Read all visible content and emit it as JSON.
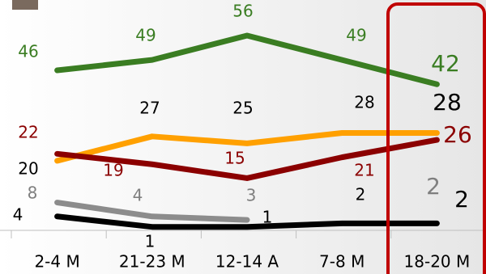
{
  "chart_data": {
    "type": "line",
    "categories": [
      "2-4 M",
      "21-23 M",
      "12-14 A",
      "7-8 M",
      "18-20 M"
    ],
    "series": [
      {
        "color": "#3a7d22",
        "label_color": "#3a7d22",
        "values": [
          46,
          49,
          56,
          49,
          42
        ]
      },
      {
        "color": "#ffa000",
        "label_color": "#000000",
        "values": [
          20,
          27,
          25,
          28,
          28
        ]
      },
      {
        "color": "#8b0000",
        "label_color": "#8b0000",
        "values": [
          22,
          19,
          15,
          21,
          26
        ]
      },
      {
        "color": "#8c8c8c",
        "label_color": "#7f7f7f",
        "values": [
          8,
          4,
          3,
          null,
          2
        ]
      },
      {
        "color": "#000000",
        "label_color": "#000000",
        "values": [
          4,
          1,
          1,
          2,
          2
        ]
      }
    ],
    "ylim": [
      0,
      56
    ],
    "highlight_color": "#c00000"
  }
}
